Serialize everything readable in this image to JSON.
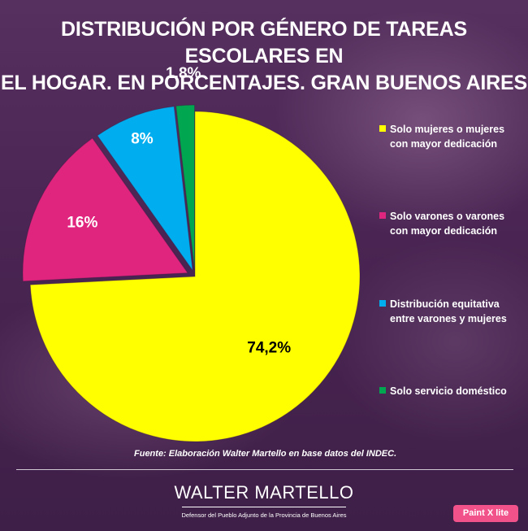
{
  "header": {
    "title_line1": "DISTRIBUCIÓN POR GÉNERO DE TAREAS ESCOLARES EN",
    "title_line2": "EL HOGAR. EN PORCENTAJES. GRAN BUENOS AIRES"
  },
  "chart_data": {
    "type": "pie",
    "title": "DISTRIBUCIÓN POR GÉNERO DE TAREAS ESCOLARES EN EL HOGAR. EN PORCENTAJES. GRAN BUENOS AIRES",
    "legend_position": "right",
    "slices": [
      {
        "label": "Solo mujeres o mujeres con mayor dedicación",
        "legend_lines": [
          "Solo mujeres o mujeres",
          "con mayor dedicación"
        ],
        "value": 74.2,
        "display": "74,2%",
        "color": "#ffff00"
      },
      {
        "label": "Solo varones o varones con mayor dedicación",
        "legend_lines": [
          "Solo varones o varones",
          "con mayor dedicación"
        ],
        "value": 16,
        "display": "16%",
        "color": "#e0257f"
      },
      {
        "label": "Distribución equitativa entre varones y mujeres",
        "legend_lines": [
          "Distribución equitativa",
          "entre varones y mujeres"
        ],
        "value": 8,
        "display": "8%",
        "color": "#00aeef"
      },
      {
        "label": "Solo servicio doméstico",
        "legend_lines": [
          "Solo servicio doméstico"
        ],
        "value": 1.8,
        "display": "1,8%",
        "color": "#00a650"
      }
    ]
  },
  "footer": {
    "source": "Fuente: Elaboración Walter Martello en base datos del INDEC.",
    "brand_name": "WALTER MARTELLO",
    "brand_subtitle": "Defensor del Pueblo Adjunto de la Provincia de Buenos Aires",
    "watermark": "Paint X lite"
  }
}
